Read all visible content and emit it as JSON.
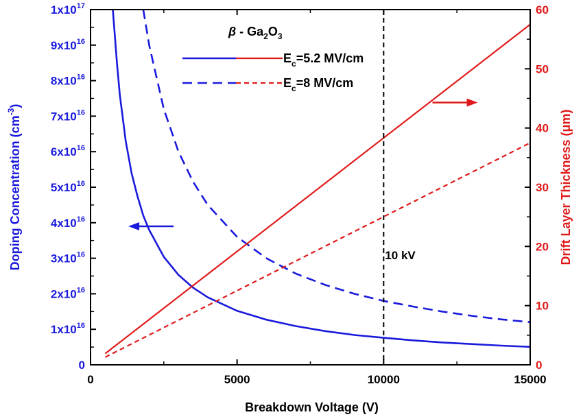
{
  "chart_data": {
    "type": "line",
    "material_label": "β - Ga2O3",
    "xlabel": "Breakdown Voltage (V)",
    "ylabel_left": "Doping Concentration (cm^-3)",
    "ylabel_right": "Drift Layer Thickness (μm)",
    "xlim": [
      0,
      15000
    ],
    "ylim_left": [
      0,
      1e+17
    ],
    "ylim_right": [
      0,
      60
    ],
    "x_ticks": [
      0,
      5000,
      10000,
      15000
    ],
    "x_tick_labels": [
      "0",
      "5000",
      "10000",
      "15000"
    ],
    "left_ticks": [
      0,
      1e+16,
      2e+16,
      3e+16,
      4e+16,
      5e+16,
      6e+16,
      7e+16,
      8e+16,
      9e+16,
      1e+17
    ],
    "left_tick_labels": [
      {
        "mant": "0",
        "exp": ""
      },
      {
        "mant": "1x10",
        "exp": "16"
      },
      {
        "mant": "2x10",
        "exp": "16"
      },
      {
        "mant": "3x10",
        "exp": "16"
      },
      {
        "mant": "4x10",
        "exp": "16"
      },
      {
        "mant": "5x10",
        "exp": "16"
      },
      {
        "mant": "6x10",
        "exp": "16"
      },
      {
        "mant": "7x10",
        "exp": "16"
      },
      {
        "mant": "8x10",
        "exp": "16"
      },
      {
        "mant": "9x10",
        "exp": "16"
      },
      {
        "mant": "1x10",
        "exp": "17"
      }
    ],
    "right_ticks": [
      0,
      10,
      20,
      30,
      40,
      50,
      60
    ],
    "right_tick_labels": [
      "0",
      "10",
      "20",
      "30",
      "40",
      "50",
      "60"
    ],
    "legend": [
      {
        "label_sub": "c",
        "label_rest": "=5.2 MV/cm",
        "label_E": "E",
        "dash": "solid"
      },
      {
        "label_sub": "c",
        "label_rest": "=8 MV/cm",
        "label_E": "E",
        "dash": "dashed"
      }
    ],
    "vline": {
      "x": 10000,
      "label": "10 kV"
    },
    "colors": {
      "doping": "#1a1adc",
      "thickness": "#e01a1a",
      "vline": "#000000"
    },
    "series": [
      {
        "name": "Ec=5.2 MV/cm",
        "quantity": "doping",
        "axis": "left",
        "dash": "solid",
        "x": [
          760,
          900,
          1000,
          1200,
          1400,
          1600,
          1800,
          2000,
          2500,
          3000,
          3500,
          4000,
          5000,
          6000,
          7000,
          8000,
          9000,
          10000,
          11000,
          12000,
          13000,
          14000,
          15000
        ],
        "y": [
          1e+17,
          8.5e+16,
          7.6e+16,
          6.3e+16,
          5.4e+16,
          4.75e+16,
          4.2e+16,
          3.8e+16,
          3.04e+16,
          2.53e+16,
          2.17e+16,
          1.9e+16,
          1.52e+16,
          1.27e+16,
          1.09e+16,
          9500000000000000.0,
          8400000000000000.0,
          7600000000000000.0,
          6900000000000000.0,
          6300000000000000.0,
          5850000000000000.0,
          5400000000000000.0,
          5050000000000000.0
        ]
      },
      {
        "name": "Ec=8 MV/cm",
        "quantity": "doping",
        "axis": "left",
        "dash": "dashed",
        "x": [
          1800,
          2000,
          2500,
          3000,
          3500,
          4000,
          5000,
          6000,
          7000,
          8000,
          9000,
          10000,
          11000,
          12000,
          13000,
          14000,
          15000
        ],
        "y": [
          1e+17,
          9e+16,
          7.2e+16,
          6e+16,
          5.15e+16,
          4.5e+16,
          3.6e+16,
          3e+16,
          2.57e+16,
          2.25e+16,
          2e+16,
          1.8e+16,
          1.64e+16,
          1.5e+16,
          1.38e+16,
          1.28e+16,
          1.2e+16
        ]
      },
      {
        "name": "Ec=5.2 MV/cm",
        "quantity": "thickness",
        "axis": "right",
        "dash": "solid",
        "x": [
          500,
          15000
        ],
        "y": [
          1.9,
          57.5
        ]
      },
      {
        "name": "Ec=8 MV/cm",
        "quantity": "thickness",
        "axis": "right",
        "dash": "dashed",
        "x": [
          500,
          15000
        ],
        "y": [
          1.3,
          37.5
        ]
      }
    ],
    "arrows": [
      {
        "direction": "left",
        "axis": "left",
        "x": 2600,
        "y": 3.9e+16,
        "color_key": "doping"
      },
      {
        "direction": "right",
        "axis": "right",
        "x": 11900,
        "y": 44.3,
        "color_key": "thickness"
      }
    ]
  }
}
